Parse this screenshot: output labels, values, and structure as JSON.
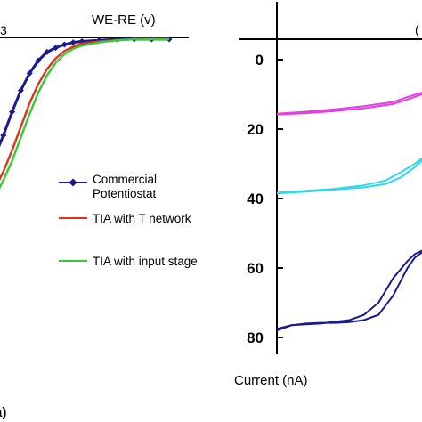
{
  "chart_data": [
    {
      "type": "line",
      "panel": "left",
      "xlabel": "WE-RE (v)",
      "left_edge_tick": "3",
      "panel_letter": "a)",
      "legend_placement": "center-right",
      "series": [
        {
          "name": "Commercial Potentiostat",
          "color": "#1a1a8c",
          "marker": "diamond",
          "x": [
            0.0,
            0.05,
            0.1,
            0.15,
            0.2,
            0.25,
            0.3,
            0.35,
            0.4,
            0.45,
            0.5,
            0.6,
            0.7,
            0.8,
            0.9,
            1.0
          ],
          "y": [
            0.55,
            0.45,
            0.34,
            0.24,
            0.16,
            0.1,
            0.06,
            0.04,
            0.025,
            0.015,
            0.01,
            0.005,
            0.0,
            0.0,
            0.0,
            0.0
          ]
        },
        {
          "name": "TIA with T network",
          "color": "#e0301e",
          "x": [
            0.0,
            0.05,
            0.1,
            0.15,
            0.2,
            0.25,
            0.3,
            0.35,
            0.4,
            0.45,
            0.5,
            0.6,
            0.7,
            0.8,
            0.9,
            1.0
          ],
          "y": [
            0.7,
            0.62,
            0.52,
            0.41,
            0.3,
            0.21,
            0.14,
            0.09,
            0.055,
            0.035,
            0.02,
            0.01,
            0.005,
            0.0,
            0.0,
            0.0
          ]
        },
        {
          "name": "TIA with input stage",
          "color": "#33cc33",
          "x": [
            0.0,
            0.05,
            0.1,
            0.15,
            0.2,
            0.25,
            0.3,
            0.35,
            0.4,
            0.45,
            0.5,
            0.6,
            0.7,
            0.8,
            0.9,
            1.0
          ],
          "y": [
            0.74,
            0.66,
            0.57,
            0.46,
            0.35,
            0.25,
            0.17,
            0.11,
            0.07,
            0.045,
            0.03,
            0.015,
            0.005,
            0.0,
            0.0,
            0.0
          ]
        }
      ]
    },
    {
      "type": "line",
      "panel": "right",
      "ylabel": "Current (nA)",
      "corner_label": "(",
      "ylim": [
        -10,
        88
      ],
      "y_ticks": [
        "0",
        "20",
        "40",
        "60",
        "80"
      ],
      "y_tick_values": [
        0,
        20,
        40,
        60,
        80
      ],
      "y_inverted": true,
      "series": [
        {
          "color": "#e040e0",
          "x": [
            0.0,
            0.2,
            0.4,
            0.6,
            0.8,
            0.9,
            1.0
          ],
          "y": [
            15.8,
            15.4,
            14.8,
            14.0,
            12.8,
            11.5,
            10.0
          ]
        },
        {
          "color": "#e040e0",
          "x": [
            0.0,
            0.2,
            0.4,
            0.6,
            0.8,
            0.9,
            1.0
          ],
          "y": [
            15.6,
            15.0,
            14.3,
            13.4,
            12.2,
            10.8,
            9.5
          ]
        },
        {
          "color": "#33d6e6",
          "x": [
            0.0,
            0.2,
            0.4,
            0.6,
            0.75,
            0.85,
            0.95,
            1.0
          ],
          "y": [
            38.5,
            38.0,
            37.4,
            36.8,
            35.8,
            34.0,
            31.0,
            29.0
          ]
        },
        {
          "color": "#33d6e6",
          "x": [
            0.0,
            0.2,
            0.4,
            0.6,
            0.75,
            0.85,
            0.95,
            1.0
          ],
          "y": [
            38.3,
            37.8,
            37.2,
            36.2,
            34.8,
            32.5,
            30.0,
            28.5
          ]
        },
        {
          "color": "#1a1a8c",
          "x": [
            0.0,
            0.1,
            0.2,
            0.3,
            0.4,
            0.5,
            0.6,
            0.7,
            0.8,
            0.9,
            0.95,
            1.0
          ],
          "y": [
            78.0,
            76.5,
            76.2,
            76.0,
            75.5,
            75.0,
            73.5,
            70.0,
            63.0,
            58.0,
            56.0,
            55.0
          ]
        },
        {
          "color": "#1a1a8c",
          "x": [
            0.0,
            0.1,
            0.2,
            0.3,
            0.4,
            0.5,
            0.6,
            0.7,
            0.8,
            0.9,
            0.95,
            1.0
          ],
          "y": [
            77.5,
            76.5,
            76.0,
            75.8,
            75.8,
            75.6,
            75.0,
            73.5,
            68.0,
            60.0,
            57.0,
            55.5
          ]
        }
      ]
    }
  ]
}
